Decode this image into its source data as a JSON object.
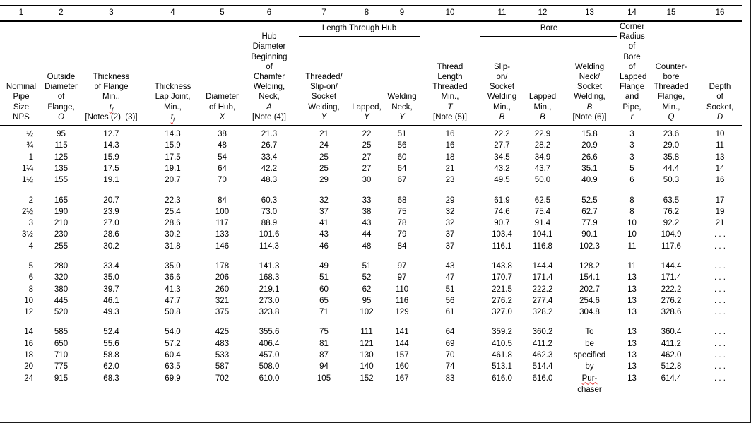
{
  "table": {
    "column_numbers": [
      "1",
      "2",
      "3",
      "4",
      "5",
      "6",
      "7",
      "8",
      "9",
      "10",
      "11",
      "12",
      "13",
      "14",
      "15",
      "16"
    ],
    "group_headers": [
      {
        "label": "Length Through Hub",
        "span": [
          7,
          9
        ]
      },
      {
        "label": "Bore",
        "span": [
          11,
          13
        ]
      }
    ],
    "columns": [
      {
        "lines": [
          "Nominal",
          "Pipe",
          "Size",
          "NPS"
        ]
      },
      {
        "lines": [
          "Outside",
          "Diameter",
          "of",
          "Flange,",
          {
            "text": "O",
            "italic": true
          }
        ]
      },
      {
        "lines": [
          "Thickness",
          "of Flange",
          "Min.,",
          {
            "text": "t",
            "sub": "f",
            "italic": true,
            "wavy": true
          },
          "[Notes (2), (3)]"
        ]
      },
      {
        "lines": [
          "Thickness",
          "Lap Joint,",
          "Min.,",
          {
            "text": "t",
            "sub": "f",
            "italic": true,
            "wavy": true
          }
        ]
      },
      {
        "lines": [
          "Diameter",
          "of Hub,",
          {
            "text": "X",
            "italic": true
          }
        ]
      },
      {
        "lines": [
          "Hub",
          "Diameter",
          "Beginning",
          "of",
          "Chamfer",
          "Welding,",
          "Neck,",
          {
            "text": "A",
            "italic": true
          },
          "[Note (4)]"
        ]
      },
      {
        "lines": [
          "Threaded/",
          "Slip-on/",
          "Socket",
          "Welding,",
          {
            "text": "Y",
            "italic": true
          }
        ]
      },
      {
        "lines": [
          "Lapped,",
          {
            "text": "Y",
            "italic": true
          }
        ]
      },
      {
        "lines": [
          "Welding",
          "Neck,",
          {
            "text": "Y",
            "italic": true
          }
        ]
      },
      {
        "lines": [
          "Thread",
          "Length",
          "Threaded",
          "Min.,",
          {
            "text": "T",
            "italic": true
          },
          "[Note (5)]"
        ]
      },
      {
        "lines": [
          "Slip-",
          "on/",
          "Socket",
          "Welding",
          "Min.,",
          {
            "text": "B",
            "italic": true
          }
        ]
      },
      {
        "lines": [
          "Lapped",
          "Min.,",
          {
            "text": "B",
            "italic": true
          }
        ]
      },
      {
        "lines": [
          "Welding",
          "Neck/",
          "Socket",
          "Welding,",
          {
            "text": "B",
            "italic": true
          },
          "[Note (6)]"
        ]
      },
      {
        "lines": [
          "Corner",
          "Radius",
          "of",
          "Bore",
          "of",
          "Lapped",
          "Flange",
          "and",
          "Pipe,",
          {
            "text": "r",
            "italic": true
          }
        ]
      },
      {
        "lines": [
          "Counter-",
          "bore",
          "Threaded",
          "Flange,",
          "Min.,",
          {
            "text": "Q",
            "italic": true
          }
        ]
      },
      {
        "lines": [
          "Depth",
          "of",
          "Socket,",
          {
            "text": "D",
            "italic": true
          }
        ]
      }
    ],
    "groups": [
      {
        "rows": [
          [
            "½",
            "95",
            "12.7",
            "14.3",
            "38",
            "21.3",
            "21",
            "22",
            "51",
            "16",
            "22.2",
            "22.9",
            "15.8",
            "3",
            "23.6",
            "10"
          ],
          [
            "¾",
            "115",
            "14.3",
            "15.9",
            "48",
            "26.7",
            "24",
            "25",
            "56",
            "16",
            "27.7",
            "28.2",
            "20.9",
            "3",
            "29.0",
            "11"
          ],
          [
            "1",
            "125",
            "15.9",
            "17.5",
            "54",
            "33.4",
            "25",
            "27",
            "60",
            "18",
            "34.5",
            "34.9",
            "26.6",
            "3",
            "35.8",
            "13"
          ],
          [
            "1¼",
            "135",
            "17.5",
            "19.1",
            "64",
            "42.2",
            "25",
            "27",
            "64",
            "21",
            "43.2",
            "43.7",
            "35.1",
            "5",
            "44.4",
            "14"
          ],
          [
            "1½",
            "155",
            "19.1",
            "20.7",
            "70",
            "48.3",
            "29",
            "30",
            "67",
            "23",
            "49.5",
            "50.0",
            "40.9",
            "6",
            "50.3",
            "16"
          ]
        ]
      },
      {
        "rows": [
          [
            "2",
            "165",
            "20.7",
            "22.3",
            "84",
            "60.3",
            "32",
            "33",
            "68",
            "29",
            "61.9",
            "62.5",
            "52.5",
            "8",
            "63.5",
            "17"
          ],
          [
            "2½",
            "190",
            "23.9",
            "25.4",
            "100",
            "73.0",
            "37",
            "38",
            "75",
            "32",
            "74.6",
            "75.4",
            "62.7",
            "8",
            "76.2",
            "19"
          ],
          [
            "3",
            "210",
            "27.0",
            "28.6",
            "117",
            "88.9",
            "41",
            "43",
            "78",
            "32",
            "90.7",
            "91.4",
            "77.9",
            "10",
            "92.2",
            "21"
          ],
          [
            "3½",
            "230",
            "28.6",
            "30.2",
            "133",
            "101.6",
            "43",
            "44",
            "79",
            "37",
            "103.4",
            "104.1",
            "90.1",
            "10",
            "104.9",
            ". . ."
          ],
          [
            "4",
            "255",
            "30.2",
            "31.8",
            "146",
            "114.3",
            "46",
            "48",
            "84",
            "37",
            "116.1",
            "116.8",
            "102.3",
            "11",
            "117.6",
            ". . ."
          ]
        ]
      },
      {
        "rows": [
          [
            "5",
            "280",
            "33.4",
            "35.0",
            "178",
            "141.3",
            "49",
            "51",
            "97",
            "43",
            "143.8",
            "144.4",
            "128.2",
            "11",
            "144.4",
            ". . ."
          ],
          [
            "6",
            "320",
            "35.0",
            "36.6",
            "206",
            "168.3",
            "51",
            "52",
            "97",
            "47",
            "170.7",
            "171.4",
            "154.1",
            "13",
            "171.4",
            ". . ."
          ],
          [
            "8",
            "380",
            "39.7",
            "41.3",
            "260",
            "219.1",
            "60",
            "62",
            "110",
            "51",
            "221.5",
            "222.2",
            "202.7",
            "13",
            "222.2",
            ". . ."
          ],
          [
            "10",
            "445",
            "46.1",
            "47.7",
            "321",
            "273.0",
            "65",
            "95",
            "116",
            "56",
            "276.2",
            "277.4",
            "254.6",
            "13",
            "276.2",
            ". . ."
          ],
          [
            "12",
            "520",
            "49.3",
            "50.8",
            "375",
            "323.8",
            "71",
            "102",
            "129",
            "61",
            "327.0",
            "328.2",
            "304.8",
            "13",
            "328.6",
            ". . ."
          ]
        ]
      },
      {
        "rows": [
          [
            "14",
            "585",
            "52.4",
            "54.0",
            "425",
            "355.6",
            "75",
            "111",
            "141",
            "64",
            "359.2",
            "360.2",
            "To",
            "13",
            "360.4",
            ". . ."
          ],
          [
            "16",
            "650",
            "55.6",
            "57.2",
            "483",
            "406.4",
            "81",
            "121",
            "144",
            "69",
            "410.5",
            "411.2",
            "be",
            "13",
            "411.2",
            ". . ."
          ],
          [
            "18",
            "710",
            "58.8",
            "60.4",
            "533",
            "457.0",
            "87",
            "130",
            "157",
            "70",
            "461.8",
            "462.3",
            "specified",
            "13",
            "462.0",
            ". . ."
          ],
          [
            "20",
            "775",
            "62.0",
            "63.5",
            "587",
            "508.0",
            "94",
            "140",
            "160",
            "74",
            "513.1",
            "514.4",
            "by",
            "13",
            "512.8",
            ". . ."
          ],
          [
            "24",
            "915",
            "68.3",
            "69.9",
            "702",
            "610.0",
            "105",
            "152",
            "167",
            "83",
            "616.0",
            "616.0",
            "Pur-\nchaser",
            "13",
            "614.4",
            ". . ."
          ]
        ]
      }
    ],
    "spellcheck_words": [
      "Pur-"
    ]
  }
}
